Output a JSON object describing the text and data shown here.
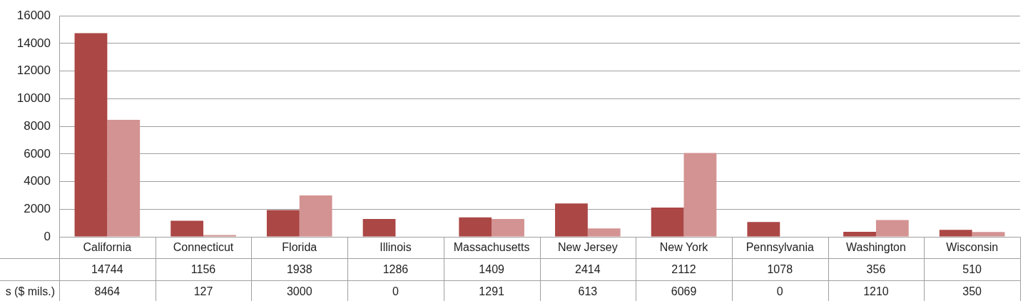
{
  "chart_data": {
    "type": "bar",
    "categories": [
      "California",
      "Connecticut",
      "Florida",
      "Illinois",
      "Massachusetts",
      "New Jersey",
      "New York",
      "Pennsylvania",
      "Washington",
      "Wisconsin"
    ],
    "series": [
      {
        "color": "#ab4745",
        "values": [
          14744,
          1156,
          1938,
          1286,
          1409,
          2414,
          2112,
          1078,
          356,
          510
        ]
      },
      {
        "name": "s ($ mils.)",
        "color": "#d39392",
        "values": [
          8464,
          127,
          3000,
          0,
          1291,
          613,
          6069,
          0,
          1210,
          350
        ]
      }
    ],
    "ylim": [
      0,
      16000
    ],
    "yticks": [
      0,
      2000,
      4000,
      6000,
      8000,
      10000,
      12000,
      14000,
      16000
    ],
    "grid": "y",
    "legend": false,
    "data_labels": true
  }
}
